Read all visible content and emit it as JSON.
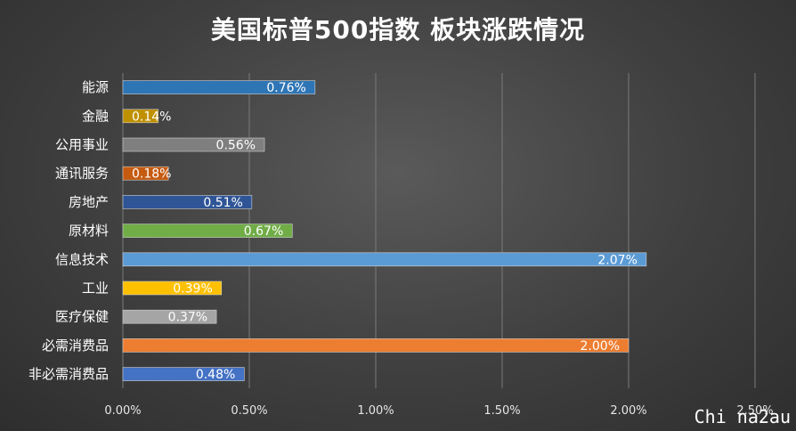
{
  "chart_data": {
    "type": "bar",
    "orientation": "horizontal",
    "title": "美国标普500指数 板块涨跌情况",
    "categories": [
      "能源",
      "金融",
      "公用事业",
      "通讯服务",
      "房地产",
      "原材料",
      "信息技术",
      "工业",
      "医疗保健",
      "必需消费品",
      "非必需消费品"
    ],
    "values": [
      0.76,
      0.14,
      0.56,
      0.18,
      0.51,
      0.67,
      2.07,
      0.39,
      0.37,
      2.0,
      0.48
    ],
    "value_labels": [
      "0.76%",
      "0.14%",
      "0.56%",
      "0.18%",
      "0.51%",
      "0.67%",
      "2.07%",
      "0.39%",
      "0.37%",
      "2.00%",
      "0.48%"
    ],
    "colors": [
      "#2e75b6",
      "#bf9000",
      "#7f7f7f",
      "#c55a11",
      "#2f5597",
      "#70ad47",
      "#5b9bd5",
      "#ffc000",
      "#a5a5a5",
      "#ed7d31",
      "#4472c4"
    ],
    "xlim": [
      0,
      2.5
    ],
    "x_ticks": [
      0,
      0.5,
      1.0,
      1.5,
      2.0,
      2.5
    ],
    "x_tick_labels": [
      "0.00%",
      "0.50%",
      "1.00%",
      "1.50%",
      "2.00%",
      "2.50%"
    ],
    "grid": true,
    "legend": "none"
  },
  "watermark": "Chi na2au"
}
